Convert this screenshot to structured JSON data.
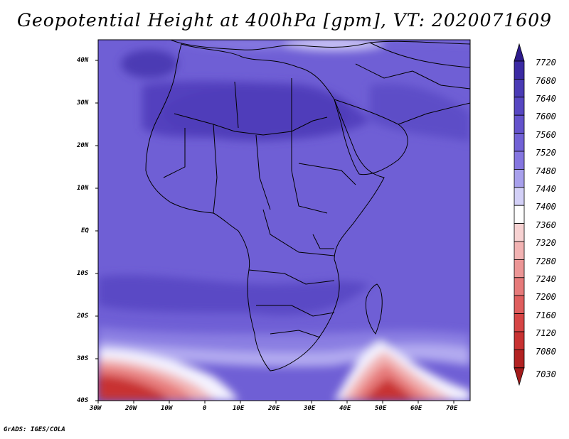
{
  "title": "Geopotential Height at 400hPa [gpm], VT: 2020071609",
  "footer": "GrADS: IGES/COLA",
  "lat_labels": [
    "40N",
    "30N",
    "20N",
    "10N",
    "EQ",
    "10S",
    "20S",
    "30S",
    "40S"
  ],
  "lon_labels": [
    "30W",
    "20W",
    "10W",
    "0",
    "10E",
    "20E",
    "30E",
    "40E",
    "50E",
    "60E",
    "70E"
  ],
  "colorbar": {
    "levels": [
      "7720",
      "7680",
      "7640",
      "7600",
      "7560",
      "7520",
      "7480",
      "7440",
      "7400",
      "7360",
      "7320",
      "7280",
      "7240",
      "7200",
      "7160",
      "7120",
      "7080",
      "7030"
    ],
    "colors": [
      "#2d1b8c",
      "#3b2aa3",
      "#4a3bb5",
      "#5747c2",
      "#6453cc",
      "#7262d6",
      "#8576e0",
      "#a8a0ec",
      "#d3d0f7",
      "#ffffff",
      "#f7d2d2",
      "#f2b3b3",
      "#ec9696",
      "#e67a7a",
      "#df5e5e",
      "#d64545",
      "#c83232",
      "#b22222",
      "#a31a1a"
    ]
  }
}
